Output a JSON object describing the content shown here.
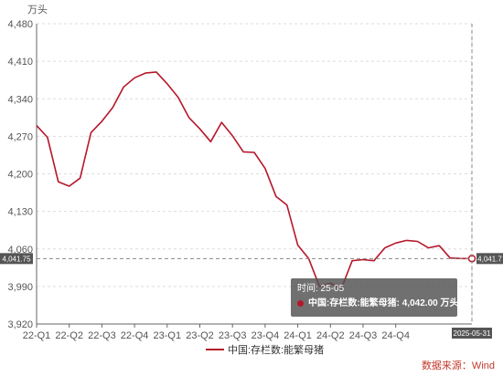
{
  "chart_data": {
    "type": "line",
    "unit": "万头",
    "ylim": [
      3920,
      4480
    ],
    "yticks": [
      3920,
      3990,
      4060,
      4130,
      4200,
      4270,
      4340,
      4410,
      4480
    ],
    "ytick_labels": [
      "3,920",
      "3,990",
      "4,060",
      "4,130",
      "4,200",
      "4,270",
      "4,340",
      "4,410",
      "4,480"
    ],
    "x_categories": [
      "22-01",
      "22-02",
      "22-03",
      "22-04",
      "22-05",
      "22-06",
      "22-07",
      "22-08",
      "22-09",
      "22-10",
      "22-11",
      "22-12",
      "23-01",
      "23-02",
      "23-03",
      "23-04",
      "23-05",
      "23-06",
      "23-07",
      "23-08",
      "23-09",
      "23-10",
      "23-11",
      "23-12",
      "24-01",
      "24-02",
      "24-03",
      "24-04",
      "24-05",
      "24-06",
      "24-07",
      "24-08",
      "24-09",
      "24-10",
      "24-11",
      "24-12",
      "25-01",
      "25-02",
      "25-03",
      "25-04",
      "25-05"
    ],
    "xtick_labels": [
      "22-Q1",
      "22-Q2",
      "22-Q3",
      "22-Q4",
      "23-Q1",
      "23-Q2",
      "23-Q3",
      "23-Q4",
      "24-Q1",
      "24-Q2",
      "24-Q3",
      "24-Q4"
    ],
    "grid": true,
    "legend_position": "bottom-center",
    "series": [
      {
        "name": "中国:存栏数:能繁母猪",
        "color": "#b5172a",
        "values": [
          4290,
          4268,
          4185,
          4177,
          4192,
          4277,
          4298,
          4324,
          4362,
          4379,
          4388,
          4390,
          4368,
          4343,
          4305,
          4284,
          4260,
          4296,
          4271,
          4241,
          4240,
          4210,
          4158,
          4142,
          4067,
          4042,
          3990,
          3996,
          3986,
          4038,
          4040,
          4038,
          4062,
          4071,
          4076,
          4074,
          4062,
          4066,
          4043,
          4042,
          4042
        ]
      }
    ],
    "crosshair": {
      "y_label": "4,041.75",
      "right_label": "4,041.7",
      "x_label": "2025-05-31"
    },
    "tooltip": {
      "time_label": "时间: 25-05",
      "series_label": "中国:存栏数:能繁母猪:",
      "value": "4,042.00",
      "unit": "万头"
    },
    "source": "数据来源：Wind"
  }
}
